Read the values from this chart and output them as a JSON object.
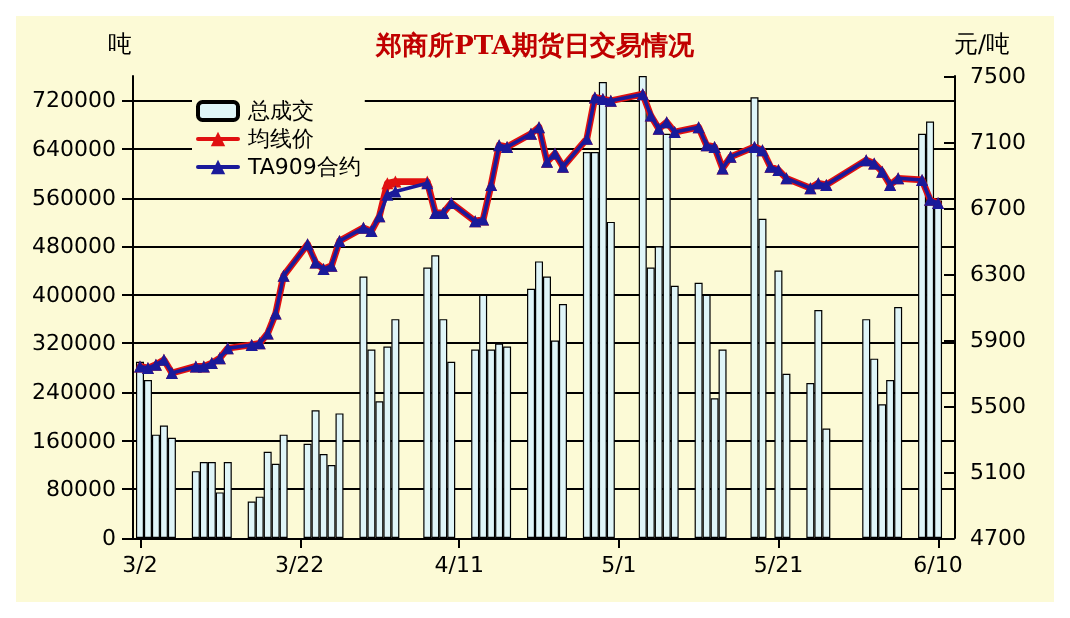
{
  "chart_data": {
    "type": "bar",
    "title": "郑商所PTA期货日交易情况",
    "ylabel": "吨",
    "y2label": "元/吨",
    "x": [
      "--03-02",
      "--03-03",
      "--03-04",
      "--03-05",
      "--03-06",
      "--03-09",
      "--03-10",
      "--03-11",
      "--03-12",
      "--03-13",
      "--03-16",
      "--03-17",
      "--03-18",
      "--03-19",
      "--03-20",
      "--03-23",
      "--03-24",
      "--03-25",
      "--03-26",
      "--03-27",
      "--03-30",
      "--03-31",
      "--04-01",
      "--04-02",
      "--04-03",
      "--04-07",
      "--04-08",
      "--04-09",
      "--04-10",
      "--04-13",
      "--04-14",
      "--04-15",
      "--04-16",
      "--04-17",
      "--04-20",
      "--04-21",
      "--04-22",
      "--04-23",
      "--04-24",
      "--04-27",
      "--04-28",
      "--04-29",
      "--04-30",
      "--05-04",
      "--05-05",
      "--05-06",
      "--05-07",
      "--05-08",
      "--05-11",
      "--05-12",
      "--05-13",
      "--05-14",
      "--05-15",
      "--05-18",
      "--05-19",
      "--05-20",
      "--05-21",
      "--05-22",
      "--05-25",
      "--05-26",
      "--05-27",
      "--06-01",
      "--06-02",
      "--06-03",
      "--06-04",
      "--06-05",
      "--06-08",
      "--06-09",
      "--06-10"
    ],
    "series": [
      {
        "name": "总成交",
        "color": "#dff5f8",
        "values": [
          290000,
          260000,
          170000,
          185000,
          165000,
          110000,
          125000,
          125000,
          75000,
          125000,
          60000,
          68000,
          142000,
          122000,
          170000,
          155000,
          210000,
          138000,
          120000,
          205000,
          430000,
          310000,
          225000,
          315000,
          360000,
          445000,
          465000,
          360000,
          290000,
          310000,
          400000,
          310000,
          320000,
          315000,
          410000,
          455000,
          430000,
          325000,
          385000,
          635000,
          635000,
          750000,
          520000,
          760000,
          445000,
          480000,
          665000,
          415000,
          420000,
          400000,
          230000,
          310000,
          null,
          725000,
          525000,
          null,
          440000,
          270000,
          255000,
          375000,
          180000,
          360000,
          295000,
          220000,
          260000,
          380000,
          665000,
          685000,
          555000
        ]
      },
      {
        "name": "均线价",
        "type": "line",
        "axis": "y2",
        "color": "#e01010",
        "values": [
          5740,
          5730,
          5750,
          5780,
          5700,
          5740,
          5740,
          5760,
          5790,
          5850,
          5870,
          5880,
          5940,
          6060,
          6290,
          6480,
          6370,
          6330,
          6350,
          6500,
          6580,
          6560,
          6650,
          6850,
          6860,
          6860,
          6670,
          6670,
          6730,
          6620,
          6630,
          6840,
          7080,
          7070,
          7150,
          7190,
          6980,
          7030,
          6950,
          7120,
          7370,
          7360,
          7350,
          7390,
          7260,
          7180,
          7220,
          7160,
          7190,
          7080,
          7070,
          6940,
          7010,
          7070,
          7050,
          6950,
          6930,
          6880,
          6820,
          6850,
          6840,
          6990,
          6970,
          6920,
          6840,
          6880,
          6870,
          6750,
          6730
        ]
      },
      {
        "name": "TA909合约",
        "type": "line",
        "axis": "y2",
        "color": "#1a1a9a",
        "values": [
          5740,
          5730,
          5750,
          5780,
          5700,
          5740,
          5740,
          5760,
          5790,
          5850,
          5870,
          5880,
          5940,
          6060,
          6290,
          6480,
          6370,
          6330,
          6350,
          6500,
          6580,
          6560,
          6650,
          6780,
          6800,
          6850,
          6670,
          6670,
          6730,
          6620,
          6630,
          6840,
          7080,
          7070,
          7150,
          7190,
          6980,
          7030,
          6950,
          7120,
          7370,
          7360,
          7350,
          7390,
          7260,
          7180,
          7220,
          7160,
          7190,
          7080,
          7070,
          6940,
          7010,
          7070,
          7050,
          6950,
          6930,
          6880,
          6820,
          6850,
          6840,
          6990,
          6970,
          6920,
          6840,
          6880,
          6870,
          6750,
          6730
        ]
      }
    ],
    "xlim": [
      "--03-01",
      "--06-12"
    ],
    "xticks": [
      {
        "value": "--03-02",
        "label": "3/2"
      },
      {
        "value": "--03-22",
        "label": "3/22"
      },
      {
        "value": "--04-11",
        "label": "4/11"
      },
      {
        "value": "--05-01",
        "label": "5/1"
      },
      {
        "value": "--05-21",
        "label": "5/21"
      },
      {
        "value": "--06-10",
        "label": "6/10"
      }
    ],
    "ylim": [
      0,
      760000
    ],
    "yticks": [
      0,
      80000,
      160000,
      240000,
      320000,
      400000,
      480000,
      560000,
      640000,
      720000
    ],
    "y2lim": [
      4700,
      7500
    ],
    "y2ticks": [
      4700,
      5100,
      5500,
      5900,
      6300,
      6700,
      7100,
      7500
    ],
    "grid": "y",
    "legend": "top left",
    "marker": "triangle",
    "line_style": "solid"
  }
}
